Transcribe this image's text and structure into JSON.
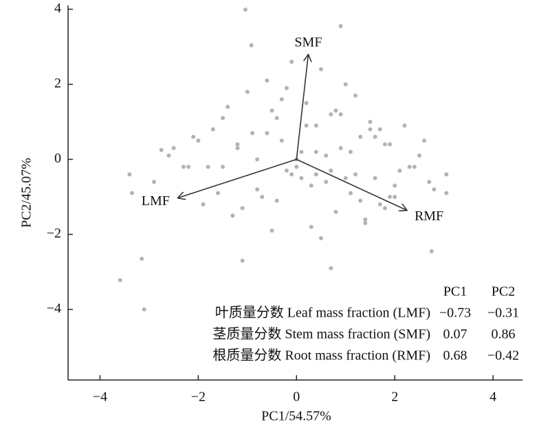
{
  "chart_data": {
    "type": "biplot",
    "x_label": "PC1/54.57%",
    "y_label": "PC2/45.07%",
    "xlim": [
      -4.65,
      4.6
    ],
    "ylim": [
      -5.88,
      4.1
    ],
    "xticks": [
      {
        "value": -4,
        "label": "−4"
      },
      {
        "value": -2,
        "label": "−2"
      },
      0,
      2,
      4
    ],
    "yticks": [
      {
        "value": -4,
        "label": "−4"
      },
      {
        "value": -2,
        "label": "−2"
      },
      0,
      2,
      4
    ],
    "series": [
      {
        "color": "#b3b3b3",
        "x": [
          -1.04,
          -0.92,
          0.9,
          -3.59,
          -3.15,
          -3.1,
          -1.1,
          0.7,
          2.75,
          3.05,
          3.05,
          -3.4,
          -3.35,
          -2.75,
          -2.9,
          -2.6,
          -2.3,
          -2.1,
          -1.9,
          -1.7,
          -1.5,
          -1.3,
          -1.2,
          -1.0,
          -0.8,
          -0.6,
          -0.5,
          -0.4,
          -0.3,
          -0.2,
          -0.1,
          0.0,
          0.1,
          0.2,
          0.3,
          0.4,
          0.5,
          0.6,
          0.7,
          0.8,
          0.9,
          1.0,
          1.1,
          1.2,
          1.3,
          1.4,
          1.5,
          1.6,
          1.7,
          1.8,
          1.9,
          2.0,
          2.2,
          2.4,
          2.6,
          2.8,
          -2.0,
          -1.6,
          -1.4,
          -0.9,
          -0.7,
          -0.3,
          0.2,
          0.4,
          0.8,
          1.1,
          1.3,
          1.6,
          2.1,
          2.5,
          -1.8,
          -1.2,
          -0.5,
          0.0,
          0.5,
          1.0,
          1.5,
          2.0,
          -2.5,
          -1.1,
          -0.2,
          0.3,
          0.6,
          1.2,
          1.8,
          2.3,
          -0.8,
          0.1,
          0.9,
          1.4,
          -1.5,
          -0.6,
          0.4,
          1.7,
          2.7,
          -2.2,
          -0.1,
          0.7,
          1.9,
          -0.4
        ],
        "y": [
          3.99,
          3.04,
          3.55,
          -3.22,
          -2.65,
          -4.0,
          -2.7,
          -2.9,
          -2.45,
          -0.4,
          -0.9,
          -0.4,
          -0.9,
          0.25,
          -0.6,
          0.1,
          -0.2,
          0.6,
          -1.2,
          0.8,
          1.1,
          -1.5,
          0.4,
          1.8,
          -0.8,
          2.1,
          1.3,
          -1.1,
          0.5,
          -0.3,
          2.6,
          -0.2,
          0.2,
          1.5,
          -1.8,
          0.9,
          2.4,
          -0.6,
          1.2,
          -1.4,
          0.3,
          2.0,
          -0.9,
          1.7,
          0.6,
          -1.6,
          1.0,
          -0.5,
          0.8,
          -1.3,
          0.4,
          -0.7,
          0.9,
          -0.2,
          0.5,
          -0.8,
          0.5,
          -0.9,
          1.4,
          0.7,
          -1.0,
          1.6,
          0.9,
          -0.4,
          1.3,
          0.2,
          -1.1,
          0.6,
          -0.3,
          0.1,
          -0.2,
          0.3,
          -1.9,
          0.0,
          -2.1,
          -0.5,
          0.8,
          -1.0,
          0.3,
          -1.3,
          1.9,
          -0.7,
          0.1,
          -0.4,
          0.4,
          -0.2,
          0.0,
          -0.5,
          1.2,
          -1.7,
          -0.2,
          0.7,
          0.2,
          -1.2,
          -0.6,
          -0.2,
          -0.4,
          -0.3,
          -1.0,
          1.1
        ]
      }
    ],
    "arrows": [
      {
        "label": "LMF",
        "x": -2.42,
        "y": -1.03
      },
      {
        "label": "SMF",
        "x": 0.24,
        "y": 2.8
      },
      {
        "label": "RMF",
        "x": 2.25,
        "y": -1.36
      }
    ],
    "loadings_table": {
      "headers": [
        "PC1",
        "PC2"
      ],
      "rows": [
        [
          "叶质量分数 Leaf mass fraction (LMF)",
          "−0.73",
          "−0.31"
        ],
        [
          "茎质量分数 Stem mass fraction (SMF)",
          "0.07",
          "0.86"
        ],
        [
          "根质量分数 Root mass fraction (RMF)",
          "0.68",
          "−0.42"
        ]
      ]
    }
  }
}
